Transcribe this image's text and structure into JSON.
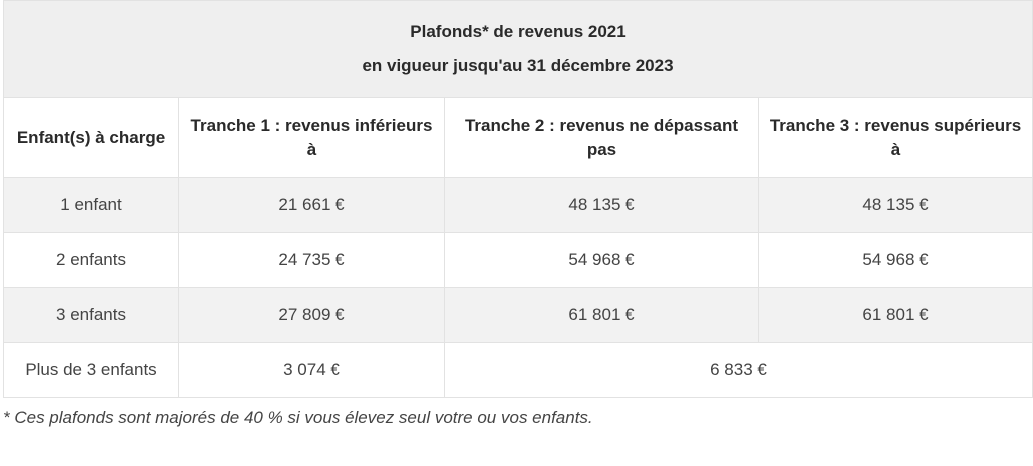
{
  "title": {
    "line1": "Plafonds* de revenus 2021",
    "line2": "en vigueur jusqu'au 31 décembre 2023"
  },
  "headers": [
    "Enfant(s) à charge",
    "Tranche 1 : revenus inférieurs à",
    "Tranche 2 : revenus ne dépassant pas",
    "Tranche 3 : revenus supérieurs à"
  ],
  "rows": [
    {
      "label": "1 enfant",
      "t1": "21 661 €",
      "t2": "48 135 €",
      "t3": "48 135 €"
    },
    {
      "label": "2 enfants",
      "t1": "24 735 €",
      "t2": "54 968 €",
      "t3": "54 968 €"
    },
    {
      "label": "3 enfants",
      "t1": "27 809 €",
      "t2": "61 801 €",
      "t3": "61 801 €"
    }
  ],
  "last_row": {
    "label": "Plus de 3 enfants",
    "t1": "3 074 €",
    "t2_t3": "6 833 €"
  },
  "footnote": "* Ces plafonds sont majorés de 40 % si vous élevez seul votre ou vos enfants.",
  "colors": {
    "title_bg": "#efefef",
    "shaded_row_bg": "#f2f2f2",
    "border": "#e2e2e2"
  }
}
